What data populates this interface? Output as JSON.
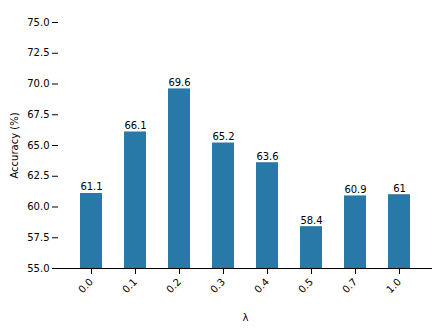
{
  "chart_data": {
    "type": "bar",
    "categories": [
      "0.0",
      "0.1",
      "0.2",
      "0.3",
      "0.4",
      "0.5",
      "0.7",
      "1.0"
    ],
    "values": [
      61.1,
      66.1,
      69.6,
      65.2,
      63.6,
      58.4,
      60.9,
      61.0
    ],
    "color": "#2878a8",
    "xlabel": "λ",
    "ylabel": "Accuracy (%)",
    "ylim": [
      55.0,
      75.0
    ],
    "yticks": [
      {
        "value": 55.0,
        "label": "55.0"
      },
      57.5,
      {
        "value": 60.0,
        "label": "60.0"
      },
      62.5,
      {
        "value": 65.0,
        "label": "65.0"
      },
      67.5,
      {
        "value": 70.0,
        "label": "70.0"
      },
      72.5,
      {
        "value": 75.0,
        "label": "75.0"
      }
    ],
    "data_labels": true
  }
}
